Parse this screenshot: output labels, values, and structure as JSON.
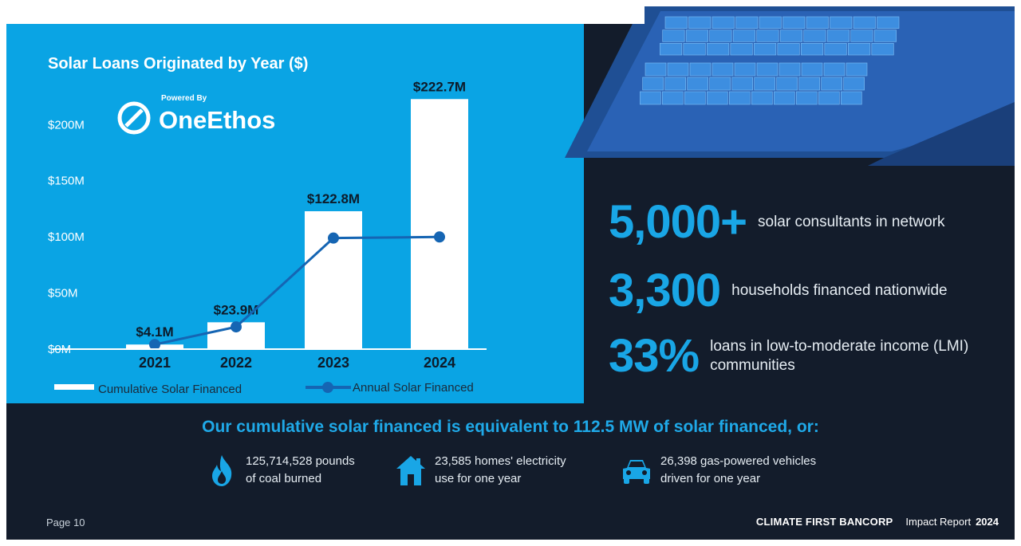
{
  "colors": {
    "panel": "#0aa4e4",
    "dark": "#131c2b",
    "accent": "#19a6e6",
    "line": "#1565b3",
    "bar": "#ffffff"
  },
  "logo": {
    "powered_by": "Powered By",
    "name": "OneEthos"
  },
  "chart_data": {
    "type": "bar",
    "title": "Solar Loans Originated by Year ($)",
    "categories": [
      "2021",
      "2022",
      "2023",
      "2024"
    ],
    "series": [
      {
        "name": "Cumulative Solar Financed",
        "type": "bar",
        "values": [
          4.1,
          23.9,
          122.8,
          222.7
        ],
        "labels": [
          "$4.1M",
          "$23.9M",
          "$122.8M",
          "$222.7M"
        ]
      },
      {
        "name": "Annual Solar Financed",
        "type": "line",
        "values": [
          4.1,
          19.8,
          98.9,
          99.9
        ]
      }
    ],
    "yticks": [
      0,
      50,
      100,
      150,
      200
    ],
    "ytick_labels": [
      "$0M",
      "$50M",
      "$100M",
      "$150M",
      "$200M"
    ],
    "ylim": [
      0,
      230
    ],
    "legend": "bottom"
  },
  "stats": [
    {
      "value": "5,000+",
      "label": "solar consultants in network"
    },
    {
      "value": "3,300",
      "label": "households financed nationwide"
    },
    {
      "value": "33%",
      "label": "loans in low-to-moderate income (LMI) communities"
    }
  ],
  "equivalence": {
    "headline": "Our cumulative solar financed is equivalent to 112.5 MW of solar financed, or:",
    "items": [
      {
        "icon": "flame-icon",
        "line1": "125,714,528 pounds",
        "line2": "of coal burned"
      },
      {
        "icon": "house-icon",
        "line1": "23,585 homes' electricity",
        "line2": "use for one year"
      },
      {
        "icon": "car-icon",
        "line1": "26,398 gas-powered vehicles",
        "line2": "driven for one year"
      }
    ]
  },
  "footer": {
    "page": "Page 10",
    "brand": "CLIMATE FIRST BANCORP",
    "report": "Impact Report",
    "year": "2024"
  }
}
